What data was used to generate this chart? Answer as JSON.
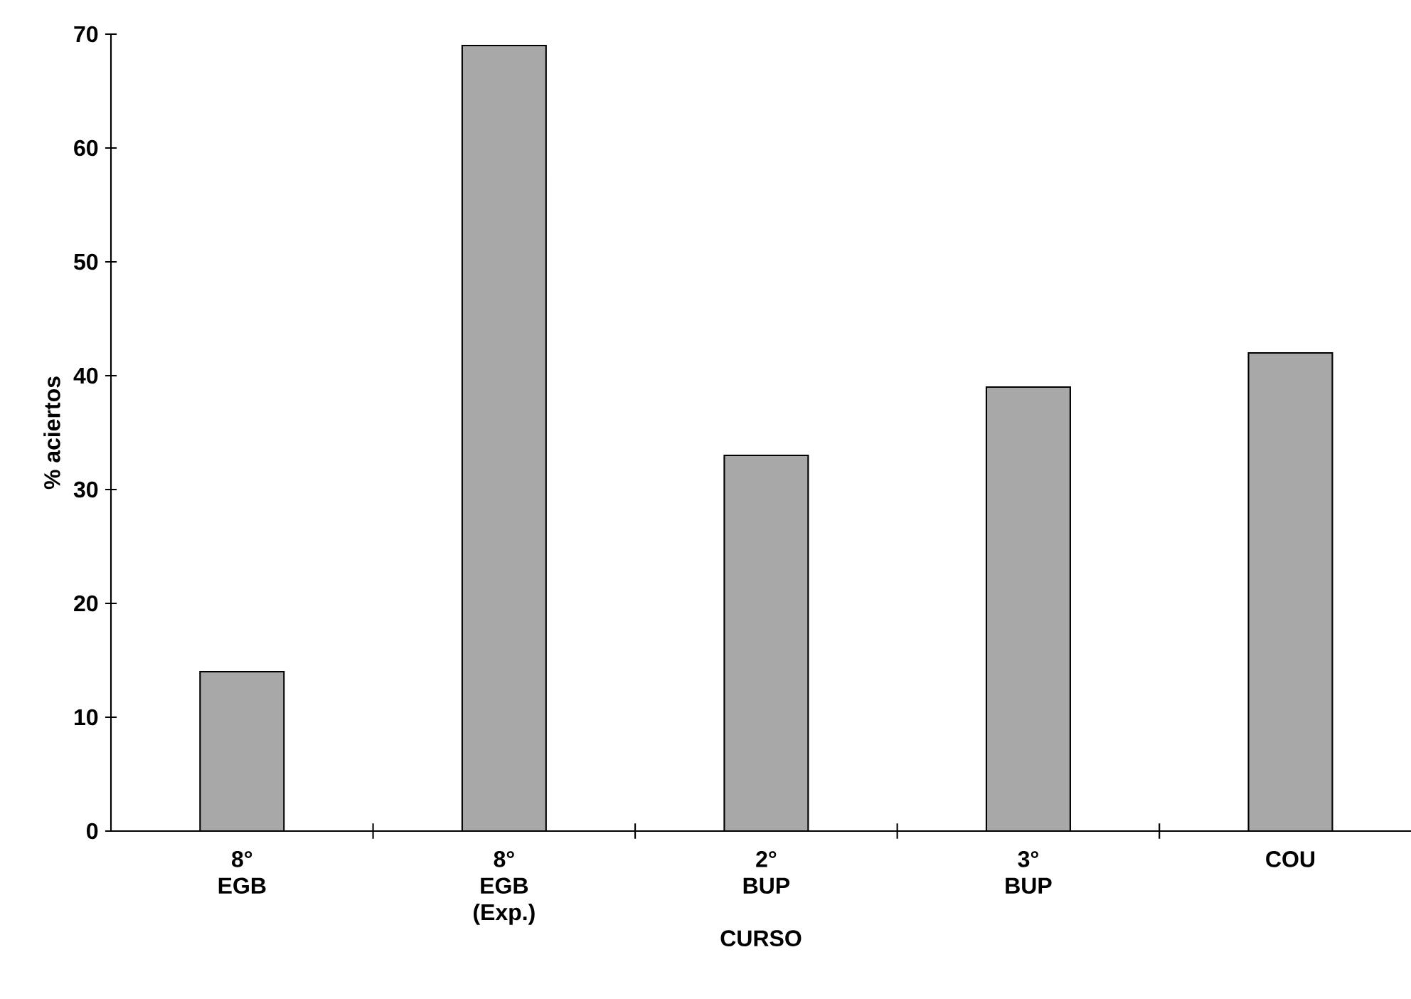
{
  "chart_data": {
    "type": "bar",
    "xlabel": "CURSO",
    "ylabel": "% aciertos",
    "categories": [
      "8° EGB",
      "8° EGB (Exp.)",
      "2° BUP",
      "3° BUP",
      "COU"
    ],
    "values": [
      14,
      69,
      33,
      39,
      42
    ],
    "color": "#a8a8a8",
    "ylim": [
      0,
      70
    ],
    "yticks": [
      0,
      10,
      20,
      30,
      40,
      50,
      60,
      70
    ],
    "grid": false
  }
}
